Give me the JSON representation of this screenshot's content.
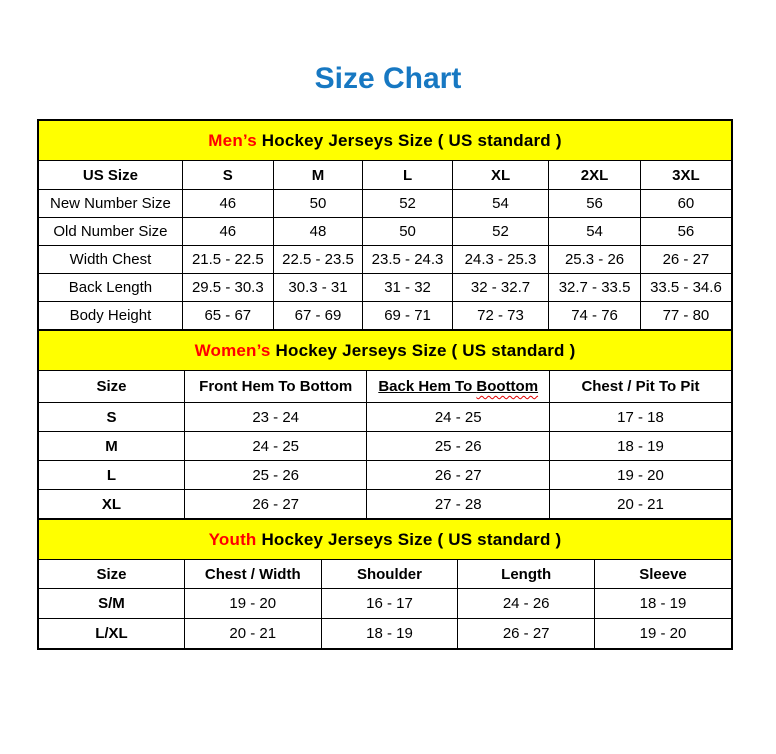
{
  "page": {
    "title": "Size Chart"
  },
  "colors": {
    "title_blue": "#1778C2",
    "banner_yellow": "#FFFF00",
    "accent_red": "#FF0000",
    "squiggle_red": "#E00000",
    "border_black": "#000000"
  },
  "sections": [
    {
      "id": "mens",
      "banner": {
        "accent": "Men’s",
        "rest": " Hockey Jerseys Size ( US standard )"
      },
      "header": [
        {
          "text": "US Size"
        },
        {
          "text": "S"
        },
        {
          "text": "M"
        },
        {
          "text": "L"
        },
        {
          "text": "XL"
        },
        {
          "text": "2XL"
        },
        {
          "text": "3XL"
        }
      ],
      "rows": [
        [
          "New Number Size",
          "46",
          "50",
          "52",
          "54",
          "56",
          "60"
        ],
        [
          "Old Number Size",
          "46",
          "48",
          "50",
          "52",
          "54",
          "56"
        ],
        [
          "Width Chest",
          "21.5 - 22.5",
          "22.5 - 23.5",
          "23.5 - 24.3",
          "24.3 - 25.3",
          "25.3 - 26",
          "26 - 27"
        ],
        [
          "Back Length",
          "29.5 - 30.3",
          "30.3 - 31",
          "31 - 32",
          "32 - 32.7",
          "32.7 - 33.5",
          "33.5 - 34.6"
        ],
        [
          "Body Height",
          "65 - 67",
          "67 - 69",
          "69 - 71",
          "72 - 73",
          "74 - 76",
          "77 - 80"
        ]
      ]
    },
    {
      "id": "womens",
      "banner": {
        "accent": "Women’s",
        "rest": " Hockey Jerseys Size ( US standard )"
      },
      "header": [
        {
          "text": "Size"
        },
        {
          "text": "Front Hem To Bottom"
        },
        {
          "text_prefix": "Back Hem To ",
          "squiggle_word": "Boottom",
          "underline": true
        },
        {
          "text": "Chest / Pit To Pit"
        }
      ],
      "rows": [
        [
          "S",
          "23 - 24",
          "24 - 25",
          "17 - 18"
        ],
        [
          "M",
          "24 - 25",
          "25 - 26",
          "18 - 19"
        ],
        [
          "L",
          "25 - 26",
          "26 - 27",
          "19 - 20"
        ],
        [
          "XL",
          "26 - 27",
          "27 - 28",
          "20 - 21"
        ]
      ]
    },
    {
      "id": "youth",
      "banner": {
        "accent": "Youth",
        "rest": " Hockey Jerseys Size ( US standard )"
      },
      "header": [
        {
          "text": "Size"
        },
        {
          "text": "Chest / Width"
        },
        {
          "text": "Shoulder"
        },
        {
          "text": "Length"
        },
        {
          "text": "Sleeve"
        }
      ],
      "rows": [
        [
          "S/M",
          "19 - 20",
          "16 - 17",
          "24 - 26",
          "18 - 19"
        ],
        [
          "L/XL",
          "20 - 21",
          "18 - 19",
          "26 - 27",
          "19 - 20"
        ]
      ]
    }
  ]
}
